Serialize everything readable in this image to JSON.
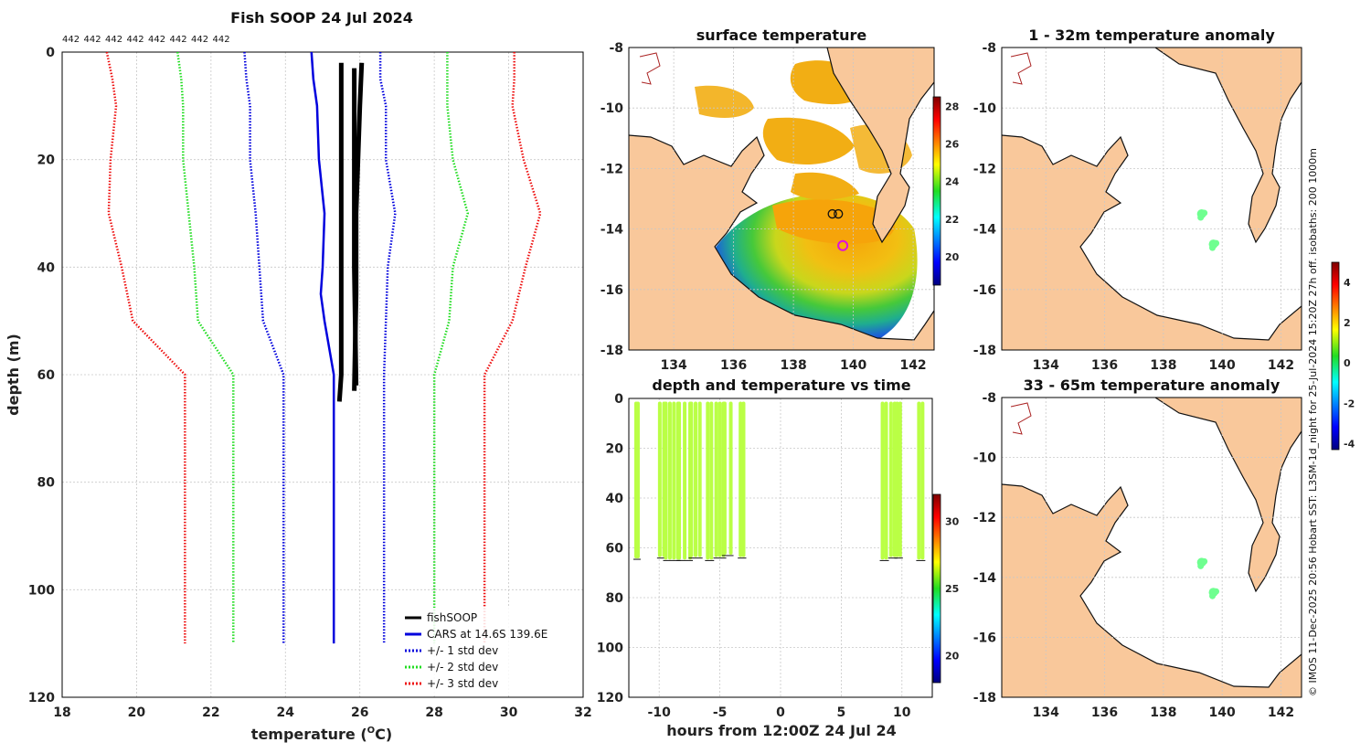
{
  "chart_data": [
    {
      "type": "line",
      "title": "Fish SOOP 24 Jul 2024",
      "count_labels": [
        "442",
        "442",
        "442",
        "442",
        "442",
        "442",
        "442",
        "442"
      ],
      "xlabel": "temperature (",
      "xlabel_sup": "O",
      "xlabel_tail": "C)",
      "ylabel": "depth (m)",
      "xlim": [
        18,
        32
      ],
      "ylim": [
        0,
        120
      ],
      "xticks": [
        18,
        20,
        22,
        24,
        26,
        28,
        30,
        32
      ],
      "yticks": [
        0,
        20,
        40,
        60,
        80,
        100,
        120
      ],
      "legend": [
        {
          "label": "fishSOOP",
          "color": "#000000",
          "style": "solid"
        },
        {
          "label": "CARS at 14.6S 139.6E",
          "color": "#0000dd",
          "style": "solid"
        },
        {
          "label": "+/- 1 std dev",
          "color": "#0000dd",
          "style": "dotted"
        },
        {
          "label": "+/- 2 std dev",
          "color": "#22dd22",
          "style": "dotted"
        },
        {
          "label": "+/- 3 std dev",
          "color": "#ee1111",
          "style": "dotted"
        }
      ],
      "series": [
        {
          "name": "fishSOOP",
          "color": "#000000",
          "style": "solid",
          "width": 5,
          "x": [
            25.5,
            25.5,
            25.5,
            25.5,
            25.45
          ],
          "depth": [
            2,
            20,
            40,
            60,
            65
          ]
        },
        {
          "name": "fishSOOP",
          "color": "#000000",
          "style": "solid",
          "width": 5,
          "x": [
            26.05,
            26.0,
            25.95,
            25.9,
            25.9,
            25.85
          ],
          "depth": [
            2,
            10,
            20,
            30,
            45,
            63
          ]
        },
        {
          "name": "fishSOOP",
          "color": "#000000",
          "style": "solid",
          "width": 5,
          "x": [
            25.85,
            25.85,
            25.85,
            25.9
          ],
          "depth": [
            3,
            20,
            40,
            62
          ]
        },
        {
          "name": "CARS at 14.6S 139.6E",
          "color": "#0000dd",
          "style": "solid",
          "width": 2.5,
          "x": [
            24.7,
            24.75,
            24.85,
            24.9,
            25.05,
            25.0,
            24.95,
            25.05,
            25.3,
            25.3,
            25.3
          ],
          "depth": [
            0,
            5,
            10,
            20,
            30,
            40,
            45,
            50,
            60,
            80,
            110
          ]
        },
        {
          "name": "+/- 1 std dev",
          "color": "#0000dd",
          "style": "dotted",
          "width": 2.5,
          "x": [
            22.9,
            22.95,
            23.05,
            23.05,
            23.2,
            23.3,
            23.4,
            23.95,
            23.95
          ],
          "depth": [
            0,
            5,
            10,
            20,
            30,
            40,
            50,
            60,
            110
          ]
        },
        {
          "name": "+/- 1 std dev",
          "color": "#0000dd",
          "style": "dotted",
          "width": 2.5,
          "x": [
            26.55,
            26.55,
            26.7,
            26.7,
            26.95,
            26.75,
            26.7,
            26.65,
            26.65
          ],
          "depth": [
            0,
            5,
            10,
            20,
            30,
            40,
            50,
            60,
            110
          ]
        },
        {
          "name": "+/- 2 std dev",
          "color": "#22dd22",
          "style": "dotted",
          "width": 2.5,
          "x": [
            21.1,
            21.2,
            21.25,
            21.25,
            21.4,
            21.55,
            21.65,
            22.6,
            22.6
          ],
          "depth": [
            0,
            5,
            10,
            20,
            30,
            40,
            50,
            60,
            110
          ]
        },
        {
          "name": "+/- 2 std dev",
          "color": "#22dd22",
          "style": "dotted",
          "width": 2.5,
          "x": [
            28.35,
            28.35,
            28.35,
            28.5,
            28.9,
            28.5,
            28.4,
            28.0,
            28.0
          ],
          "depth": [
            0,
            5,
            10,
            20,
            30,
            40,
            50,
            60,
            110
          ]
        },
        {
          "name": "+/- 3 std dev",
          "color": "#ee1111",
          "style": "dotted",
          "width": 2.5,
          "x": [
            19.2,
            19.35,
            19.45,
            19.3,
            19.25,
            19.6,
            19.9,
            21.3,
            21.3
          ],
          "depth": [
            0,
            5,
            10,
            20,
            30,
            40,
            50,
            60,
            110
          ]
        },
        {
          "name": "+/- 3 std dev",
          "color": "#ee1111",
          "style": "dotted",
          "width": 2.5,
          "x": [
            30.15,
            30.15,
            30.1,
            30.4,
            30.85,
            30.45,
            30.1,
            29.35,
            29.35
          ],
          "depth": [
            0,
            5,
            10,
            20,
            30,
            40,
            50,
            60,
            110
          ]
        }
      ]
    },
    {
      "type": "heatmap",
      "title": "surface temperature",
      "xlim": [
        132.5,
        142.7
      ],
      "ylim": [
        -18,
        -8
      ],
      "xticks": [
        134,
        136,
        138,
        140,
        142
      ],
      "yticks": [
        -8,
        -10,
        -12,
        -14,
        -16,
        -18
      ],
      "colorbar": {
        "min": 18.5,
        "max": 28.5,
        "ticks": [
          20,
          22,
          24,
          26,
          28
        ]
      },
      "markers": [
        {
          "lon": 139.3,
          "lat": -13.5,
          "kind": "open-circle"
        },
        {
          "lon": 139.5,
          "lat": -13.5,
          "kind": "open-circle"
        },
        {
          "lon": 139.65,
          "lat": -14.55,
          "kind": "magenta-circle"
        }
      ]
    },
    {
      "type": "scatter",
      "title": "depth and temperature vs time",
      "xlabel": "hours from 12:00Z 24 Jul 24",
      "xlim": [
        -12.5,
        12.5
      ],
      "ylim": [
        0,
        120
      ],
      "xticks": [
        -10,
        -5,
        0,
        5,
        10
      ],
      "yticks": [
        0,
        20,
        40,
        60,
        80,
        100,
        120
      ],
      "colorbar": {
        "min": 18,
        "max": 32,
        "ticks": [
          20,
          25,
          30
        ]
      },
      "casts": [
        {
          "t_start": -11.9,
          "t_end": -11.75,
          "max_depth": 63.5
        },
        {
          "t_start": -9.95,
          "t_end": -9.6,
          "max_depth": 63
        },
        {
          "t_start": -9.45,
          "t_end": -8.45,
          "max_depth": 64
        },
        {
          "t_start": -8.35,
          "t_end": -7.45,
          "max_depth": 64
        },
        {
          "t_start": -7.35,
          "t_end": -6.65,
          "max_depth": 63
        },
        {
          "t_start": -6.0,
          "t_end": -5.7,
          "max_depth": 64
        },
        {
          "t_start": -5.3,
          "t_end": -4.7,
          "max_depth": 63
        },
        {
          "t_start": -4.6,
          "t_end": -4.1,
          "max_depth": 62
        },
        {
          "t_start": -3.3,
          "t_end": -3.05,
          "max_depth": 63
        },
        {
          "t_start": 8.4,
          "t_end": 8.7,
          "max_depth": 64
        },
        {
          "t_start": 9.1,
          "t_end": 9.4,
          "max_depth": 63
        },
        {
          "t_start": 9.6,
          "t_end": 9.85,
          "max_depth": 63
        },
        {
          "t_start": 11.4,
          "t_end": 11.7,
          "max_depth": 64
        }
      ],
      "cast_temperature": 25.8
    },
    {
      "type": "heatmap",
      "title": "1 - 32m temperature anomaly",
      "xlim": [
        132.5,
        142.7
      ],
      "ylim": [
        -18,
        -8
      ],
      "xticks": [
        134,
        136,
        138,
        140,
        142
      ],
      "yticks": [
        -8,
        -10,
        -12,
        -14,
        -16,
        -18
      ],
      "colorbar": {
        "min": -4.3,
        "max": 5.0,
        "ticks": [
          4,
          2,
          0,
          -2,
          -4
        ]
      },
      "points": [
        {
          "lon": 139.3,
          "lat": -13.5,
          "value": 0.2
        },
        {
          "lon": 139.7,
          "lat": -14.5,
          "value": 0.2
        }
      ]
    },
    {
      "type": "heatmap",
      "title": "33 - 65m temperature anomaly",
      "xlim": [
        132.5,
        142.7
      ],
      "ylim": [
        -18,
        -8
      ],
      "xticks": [
        134,
        136,
        138,
        140,
        142
      ],
      "yticks": [
        -8,
        -10,
        -12,
        -14,
        -16,
        -18
      ],
      "points": [
        {
          "lon": 139.3,
          "lat": -13.5,
          "value": 0.2
        },
        {
          "lon": 139.7,
          "lat": -14.5,
          "value": 0.2
        }
      ]
    }
  ],
  "side_credit": "© IMOS 11-Dec-2025 20:56 Hobart SST: L3SM-1d_night for 25-Jul-2024 15:20Z 27h off. isobaths: 200  1000m"
}
